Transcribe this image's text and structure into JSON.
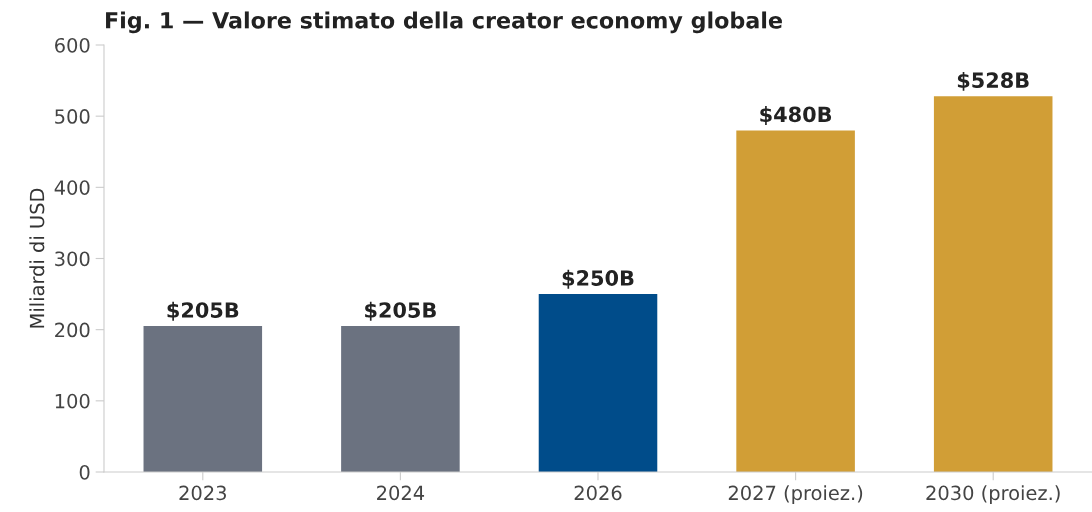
{
  "chart_data": {
    "type": "bar",
    "title": "Fig. 1 — Valore stimato della creator economy globale",
    "ylabel": "Miliardi di USD",
    "categories": [
      "2023",
      "2024",
      "2026",
      "2027 (proiez.)",
      "2030 (proiez.)"
    ],
    "values": [
      205,
      205,
      250,
      480,
      528
    ],
    "colors": [
      "#6b7280",
      "#6b7280",
      "#004c8a",
      "#d19e36",
      "#d19e36"
    ],
    "value_labels": [
      "$205B",
      "$205B",
      "$250B",
      "$480B",
      "$528B"
    ],
    "ylim": [
      0,
      600
    ],
    "yticks": [
      0,
      100,
      200,
      300,
      400,
      500,
      600
    ],
    "grid": false,
    "legend": false
  }
}
